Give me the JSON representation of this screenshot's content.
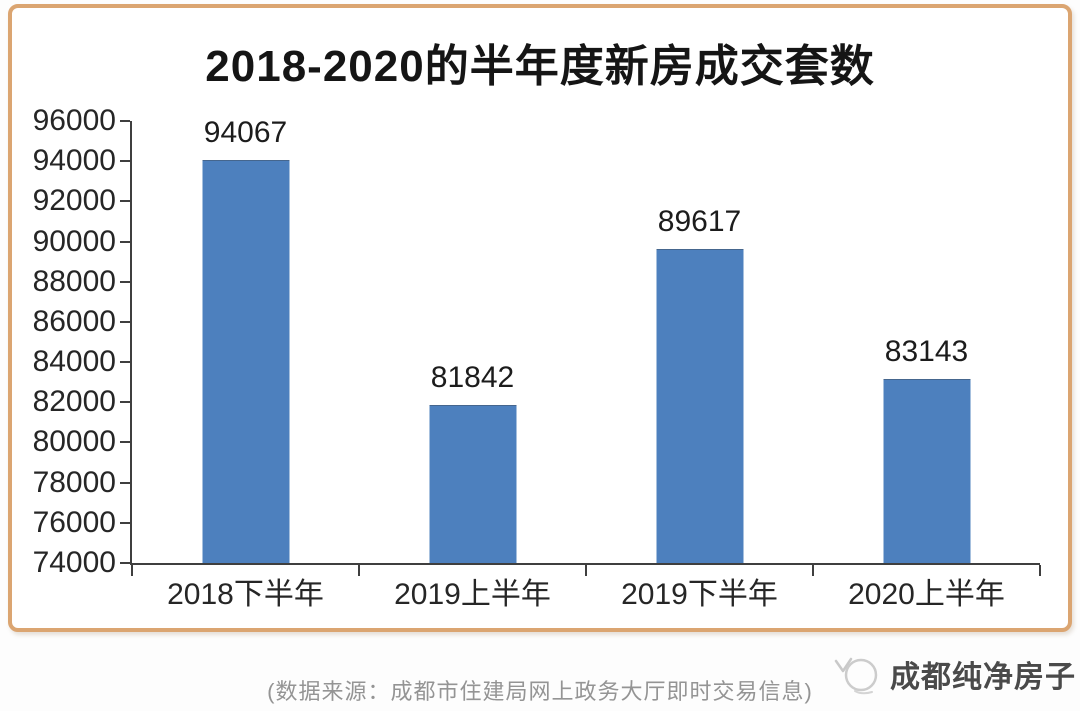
{
  "chart_card": {
    "title": "2018-2020的半年度新房成交套数"
  },
  "chart_data": {
    "type": "bar",
    "title": "2018-2020的半年度新房成交套数",
    "categories": [
      "2018下半年",
      "2019上半年",
      "2019下半年",
      "2020上半年"
    ],
    "values": [
      94067,
      81842,
      89617,
      83143
    ],
    "xlabel": "",
    "ylabel": "",
    "ylim": [
      74000,
      96000
    ],
    "y_tick_step": 2000,
    "y_ticks": [
      96000,
      94000,
      92000,
      90000,
      88000,
      86000,
      84000,
      82000,
      80000,
      78000,
      76000,
      74000
    ],
    "grid": false,
    "legend": false,
    "data_labels": true,
    "bar_color": "#4d80be"
  },
  "footer": {
    "source_note": "(数据来源：成都市住建局网上政务大厅即时交易信息)",
    "brand_name": "成都纯净房子",
    "brand_icon": "bird-doodle-icon"
  },
  "colors": {
    "bar": "#4d80be",
    "card_border": "#dba571",
    "axis": "#3f3f3f",
    "title_text": "#151515",
    "tick_text": "#262626",
    "source_text": "#949494",
    "brand_text": "#4a4a4a"
  }
}
